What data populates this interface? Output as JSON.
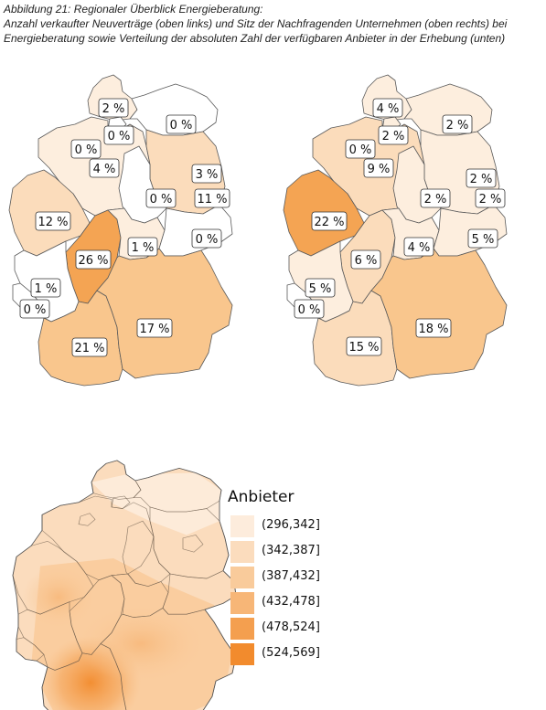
{
  "caption": {
    "line1": "Abbildung 21: Regionaler Überblick Energieberatung:",
    "line2": "Anzahl verkaufter Neuverträge (oben links) und Sitz der Nachfragenden Unternehmen (oben rechts) bei",
    "line3": "Energieberatung sowie Verteilung der absoluten Zahl der verfügbaren Anbieter in der Erhebung (unten)"
  },
  "colors": {
    "c0": "#ffffff",
    "c1": "#fdeede",
    "c2": "#fbdcbb",
    "c3": "#f9c68d",
    "c4": "#f4a453"
  },
  "map_left": {
    "regions": [
      {
        "state": "Schleswig-Holstein",
        "label": "2 %",
        "level": 1
      },
      {
        "state": "Hamburg",
        "label": "0 %",
        "level": 0
      },
      {
        "state": "Mecklenburg-Vorpommern",
        "label": "0 %",
        "level": 0
      },
      {
        "state": "Bremen",
        "label": "0 %",
        "level": 0
      },
      {
        "state": "Niedersachsen",
        "label": "4 %",
        "level": 1
      },
      {
        "state": "Berlin",
        "label": "3 %",
        "level": 2
      },
      {
        "state": "Brandenburg",
        "label": "11 %",
        "level": 2
      },
      {
        "state": "Sachsen-Anhalt",
        "label": "0 %",
        "level": 0
      },
      {
        "state": "Nordrhein-Westfalen",
        "label": "12 %",
        "level": 2
      },
      {
        "state": "Hessen",
        "label": "26 %",
        "level": 4
      },
      {
        "state": "Thüringen",
        "label": "1 %",
        "level": 1
      },
      {
        "state": "Sachsen",
        "label": "0 %",
        "level": 0
      },
      {
        "state": "Rheinland-Pfalz",
        "label": "1 %",
        "level": 0
      },
      {
        "state": "Saarland",
        "label": "0 %",
        "level": 0
      },
      {
        "state": "Baden-Württemberg",
        "label": "21 %",
        "level": 3
      },
      {
        "state": "Bayern",
        "label": "17 %",
        "level": 3
      }
    ]
  },
  "map_right": {
    "regions": [
      {
        "state": "Schleswig-Holstein",
        "label": "4 %",
        "level": 1
      },
      {
        "state": "Hamburg",
        "label": "2 %",
        "level": 1
      },
      {
        "state": "Mecklenburg-Vorpommern",
        "label": "2 %",
        "level": 1
      },
      {
        "state": "Bremen",
        "label": "0 %",
        "level": 0
      },
      {
        "state": "Niedersachsen",
        "label": "9 %",
        "level": 2
      },
      {
        "state": "Berlin",
        "label": "2 %",
        "level": 1
      },
      {
        "state": "Brandenburg",
        "label": "2 %",
        "level": 1
      },
      {
        "state": "Sachsen-Anhalt",
        "label": "2 %",
        "level": 1
      },
      {
        "state": "Nordrhein-Westfalen",
        "label": "22 %",
        "level": 4
      },
      {
        "state": "Hessen",
        "label": "6 %",
        "level": 2
      },
      {
        "state": "Thüringen",
        "label": "4 %",
        "level": 1
      },
      {
        "state": "Sachsen",
        "label": "5 %",
        "level": 1
      },
      {
        "state": "Rheinland-Pfalz",
        "label": "5 %",
        "level": 1
      },
      {
        "state": "Saarland",
        "label": "0 %",
        "level": 0
      },
      {
        "state": "Baden-Württemberg",
        "label": "15 %",
        "level": 2
      },
      {
        "state": "Bayern",
        "label": "18 %",
        "level": 3
      }
    ]
  },
  "legend": {
    "title": "Anbieter",
    "items": [
      {
        "label": "(296,342]",
        "color": "#fdecdc"
      },
      {
        "label": "(342,387]",
        "color": "#fbdcbd"
      },
      {
        "label": "(387,432]",
        "color": "#f9cb9b"
      },
      {
        "label": "(432,478]",
        "color": "#f7b677"
      },
      {
        "label": "(478,524]",
        "color": "#f49f4f"
      },
      {
        "label": "(524,569]",
        "color": "#f28b2d"
      }
    ]
  }
}
